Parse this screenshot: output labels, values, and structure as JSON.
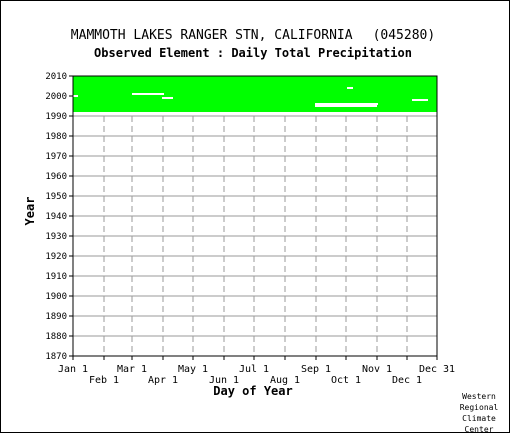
{
  "chart_data": {
    "type": "heatmap",
    "title": "MAMMOTH LAKES RANGER STN, CALIFORNIA",
    "station_id": "(045280)",
    "subtitle": "Observed Element : Daily Total Precipitation",
    "xlabel": "Day of Year",
    "ylabel": "Year",
    "x_ticks_upper": [
      {
        "label": "Jan 1",
        "day": 1
      },
      {
        "label": "Mar 1",
        "day": 60
      },
      {
        "label": "May 1",
        "day": 121
      },
      {
        "label": "Jul 1",
        "day": 182
      },
      {
        "label": "Sep 1",
        "day": 244
      },
      {
        "label": "Nov 1",
        "day": 305
      },
      {
        "label": "Dec 31",
        "day": 365
      }
    ],
    "x_ticks_lower": [
      {
        "label": "Feb 1",
        "day": 32
      },
      {
        "label": "Apr 1",
        "day": 91
      },
      {
        "label": "Jun 1",
        "day": 152
      },
      {
        "label": "Aug 1",
        "day": 213
      },
      {
        "label": "Oct 1",
        "day": 274
      },
      {
        "label": "Dec 1",
        "day": 335
      }
    ],
    "y_ticks": [
      "2010",
      "2000",
      "1990",
      "1980",
      "1970",
      "1960",
      "1950",
      "1940",
      "1930",
      "1920",
      "1910",
      "1900",
      "1890",
      "1880",
      "1870"
    ],
    "xlim": [
      1,
      365
    ],
    "ylim": [
      1870,
      2010
    ],
    "grid": true,
    "data_color": "#00ff00",
    "missing_color": "#ffffff",
    "data_coverage": {
      "year_start": 1992,
      "year_end": 2010
    },
    "missing_segments": [
      {
        "year": 2001,
        "day_start": 60,
        "day_end": 92
      },
      {
        "year": 1999,
        "day_start": 90,
        "day_end": 101
      },
      {
        "year": 1996,
        "day_start": 243,
        "day_end": 306
      },
      {
        "year": 1995,
        "day_start": 243,
        "day_end": 305
      },
      {
        "year": 2004,
        "day_start": 275,
        "day_end": 281
      },
      {
        "year": 2000,
        "day_start": 1,
        "day_end": 6
      },
      {
        "year": 1998,
        "day_start": 340,
        "day_end": 356
      }
    ]
  },
  "credit": [
    "Western",
    "Regional",
    "Climate",
    "Center"
  ]
}
